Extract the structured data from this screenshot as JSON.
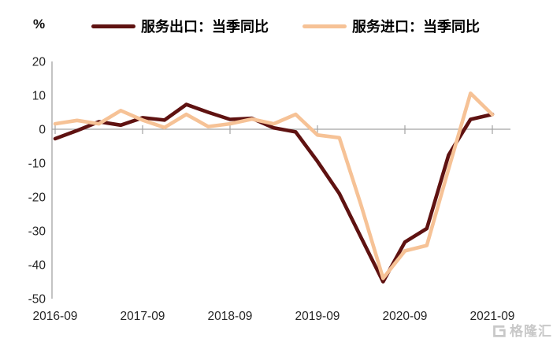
{
  "unit_label": "%",
  "watermark": {
    "text": "格隆汇"
  },
  "colors": {
    "export": "#5f1211",
    "import": "#f6c296",
    "axis": "#a3a3a3",
    "tick_text": "#262626",
    "watermark": "#c8c8c8"
  },
  "chart_data": {
    "type": "line",
    "title": "",
    "unit": "%",
    "grid": false,
    "legend_position": "top",
    "categories": [
      "2016-09",
      "2016-12",
      "2017-03",
      "2017-06",
      "2017-09",
      "2017-12",
      "2018-03",
      "2018-06",
      "2018-09",
      "2018-12",
      "2019-03",
      "2019-06",
      "2019-09",
      "2019-12",
      "2020-03",
      "2020-06",
      "2020-09",
      "2020-12",
      "2021-03",
      "2021-06",
      "2021-09"
    ],
    "x_tick_labels": [
      "2016-09",
      "2017-09",
      "2018-09",
      "2019-09",
      "2020-09",
      "2021-09"
    ],
    "x_tick_every": 4,
    "ylim": [
      -50,
      20
    ],
    "yticks": [
      20,
      10,
      0,
      -10,
      -20,
      -30,
      -40,
      -50
    ],
    "series": [
      {
        "name": "服务出口：当季同比",
        "color_key": "export",
        "values": [
          -2.8,
          -0.4,
          2.2,
          1.2,
          3.4,
          2.7,
          7.3,
          5.0,
          2.9,
          3.2,
          0.4,
          -0.8,
          -9.5,
          -19.0,
          -32.0,
          -45.0,
          -33.3,
          -29.3,
          -7.6,
          2.9,
          4.4
        ]
      },
      {
        "name": "服务进口：当季同比",
        "color_key": "import",
        "values": [
          1.6,
          2.6,
          1.6,
          5.5,
          2.7,
          0.5,
          4.4,
          0.8,
          1.6,
          3.0,
          1.6,
          4.4,
          -1.7,
          -2.5,
          -22.5,
          -44.0,
          -35.9,
          -34.3,
          -11.7,
          10.6,
          4.3
        ]
      }
    ]
  }
}
